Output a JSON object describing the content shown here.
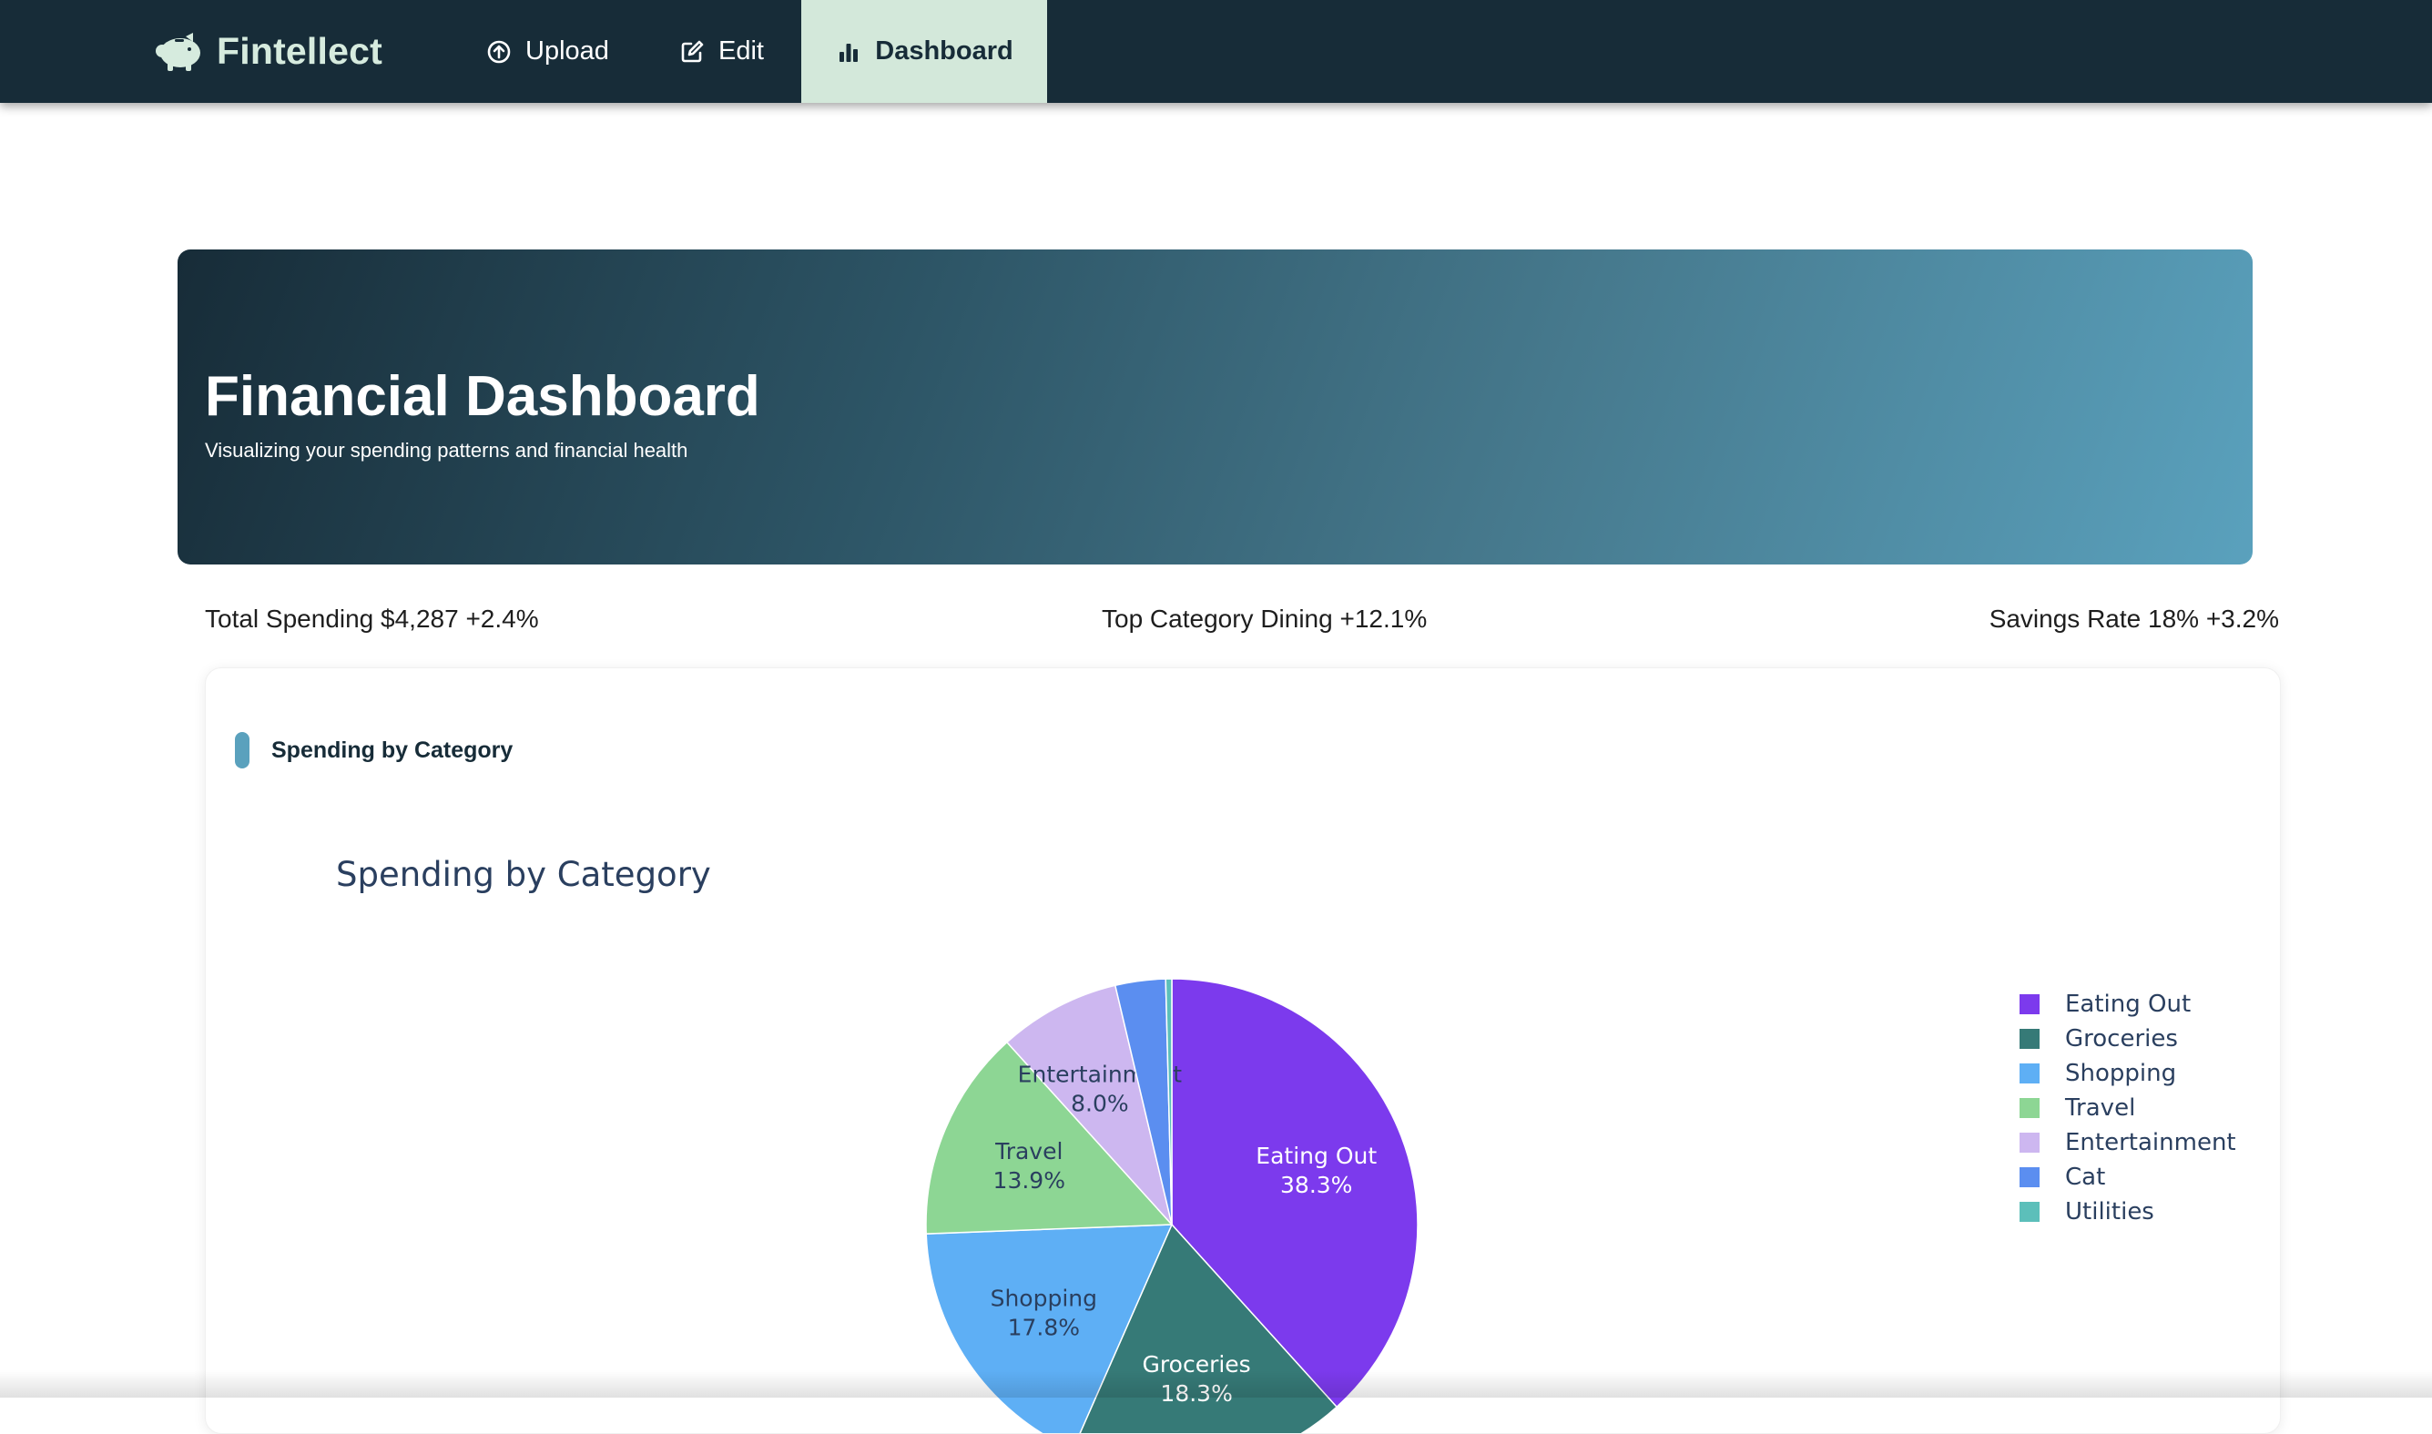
{
  "navbar": {
    "brand": "Fintellect",
    "items": [
      {
        "label": "Upload",
        "icon": "upload-circle-icon"
      },
      {
        "label": "Edit",
        "icon": "edit-icon"
      },
      {
        "label": "Dashboard",
        "icon": "bar-chart-icon",
        "active": true
      }
    ]
  },
  "hero": {
    "title": "Financial Dashboard",
    "subtitle": "Visualizing your spending patterns and financial health"
  },
  "stats": {
    "total": "Total Spending $4,287 +2.4%",
    "top_category": "Top Category Dining +12.1%",
    "savings": "Savings Rate 18% +3.2%"
  },
  "card": {
    "title": "Spending by Category"
  },
  "colors": {
    "nav_bg": "#172c38",
    "nav_active_bg": "#d3e8da",
    "accent": "#5aa1bd"
  },
  "chart_data": {
    "type": "pie",
    "title": "Spending by Category",
    "legend_position": "right",
    "labels": [
      "Eating Out",
      "Groceries",
      "Shopping",
      "Travel",
      "Entertainment",
      "Cat",
      "Utilities"
    ],
    "values": [
      38.3,
      18.3,
      17.8,
      13.9,
      8.0,
      3.3,
      0.4
    ],
    "colors": [
      "#7c3aed",
      "#367a77",
      "#5eaff5",
      "#8dd694",
      "#cdb7f0",
      "#5b8ef0",
      "#5cbfba"
    ]
  }
}
